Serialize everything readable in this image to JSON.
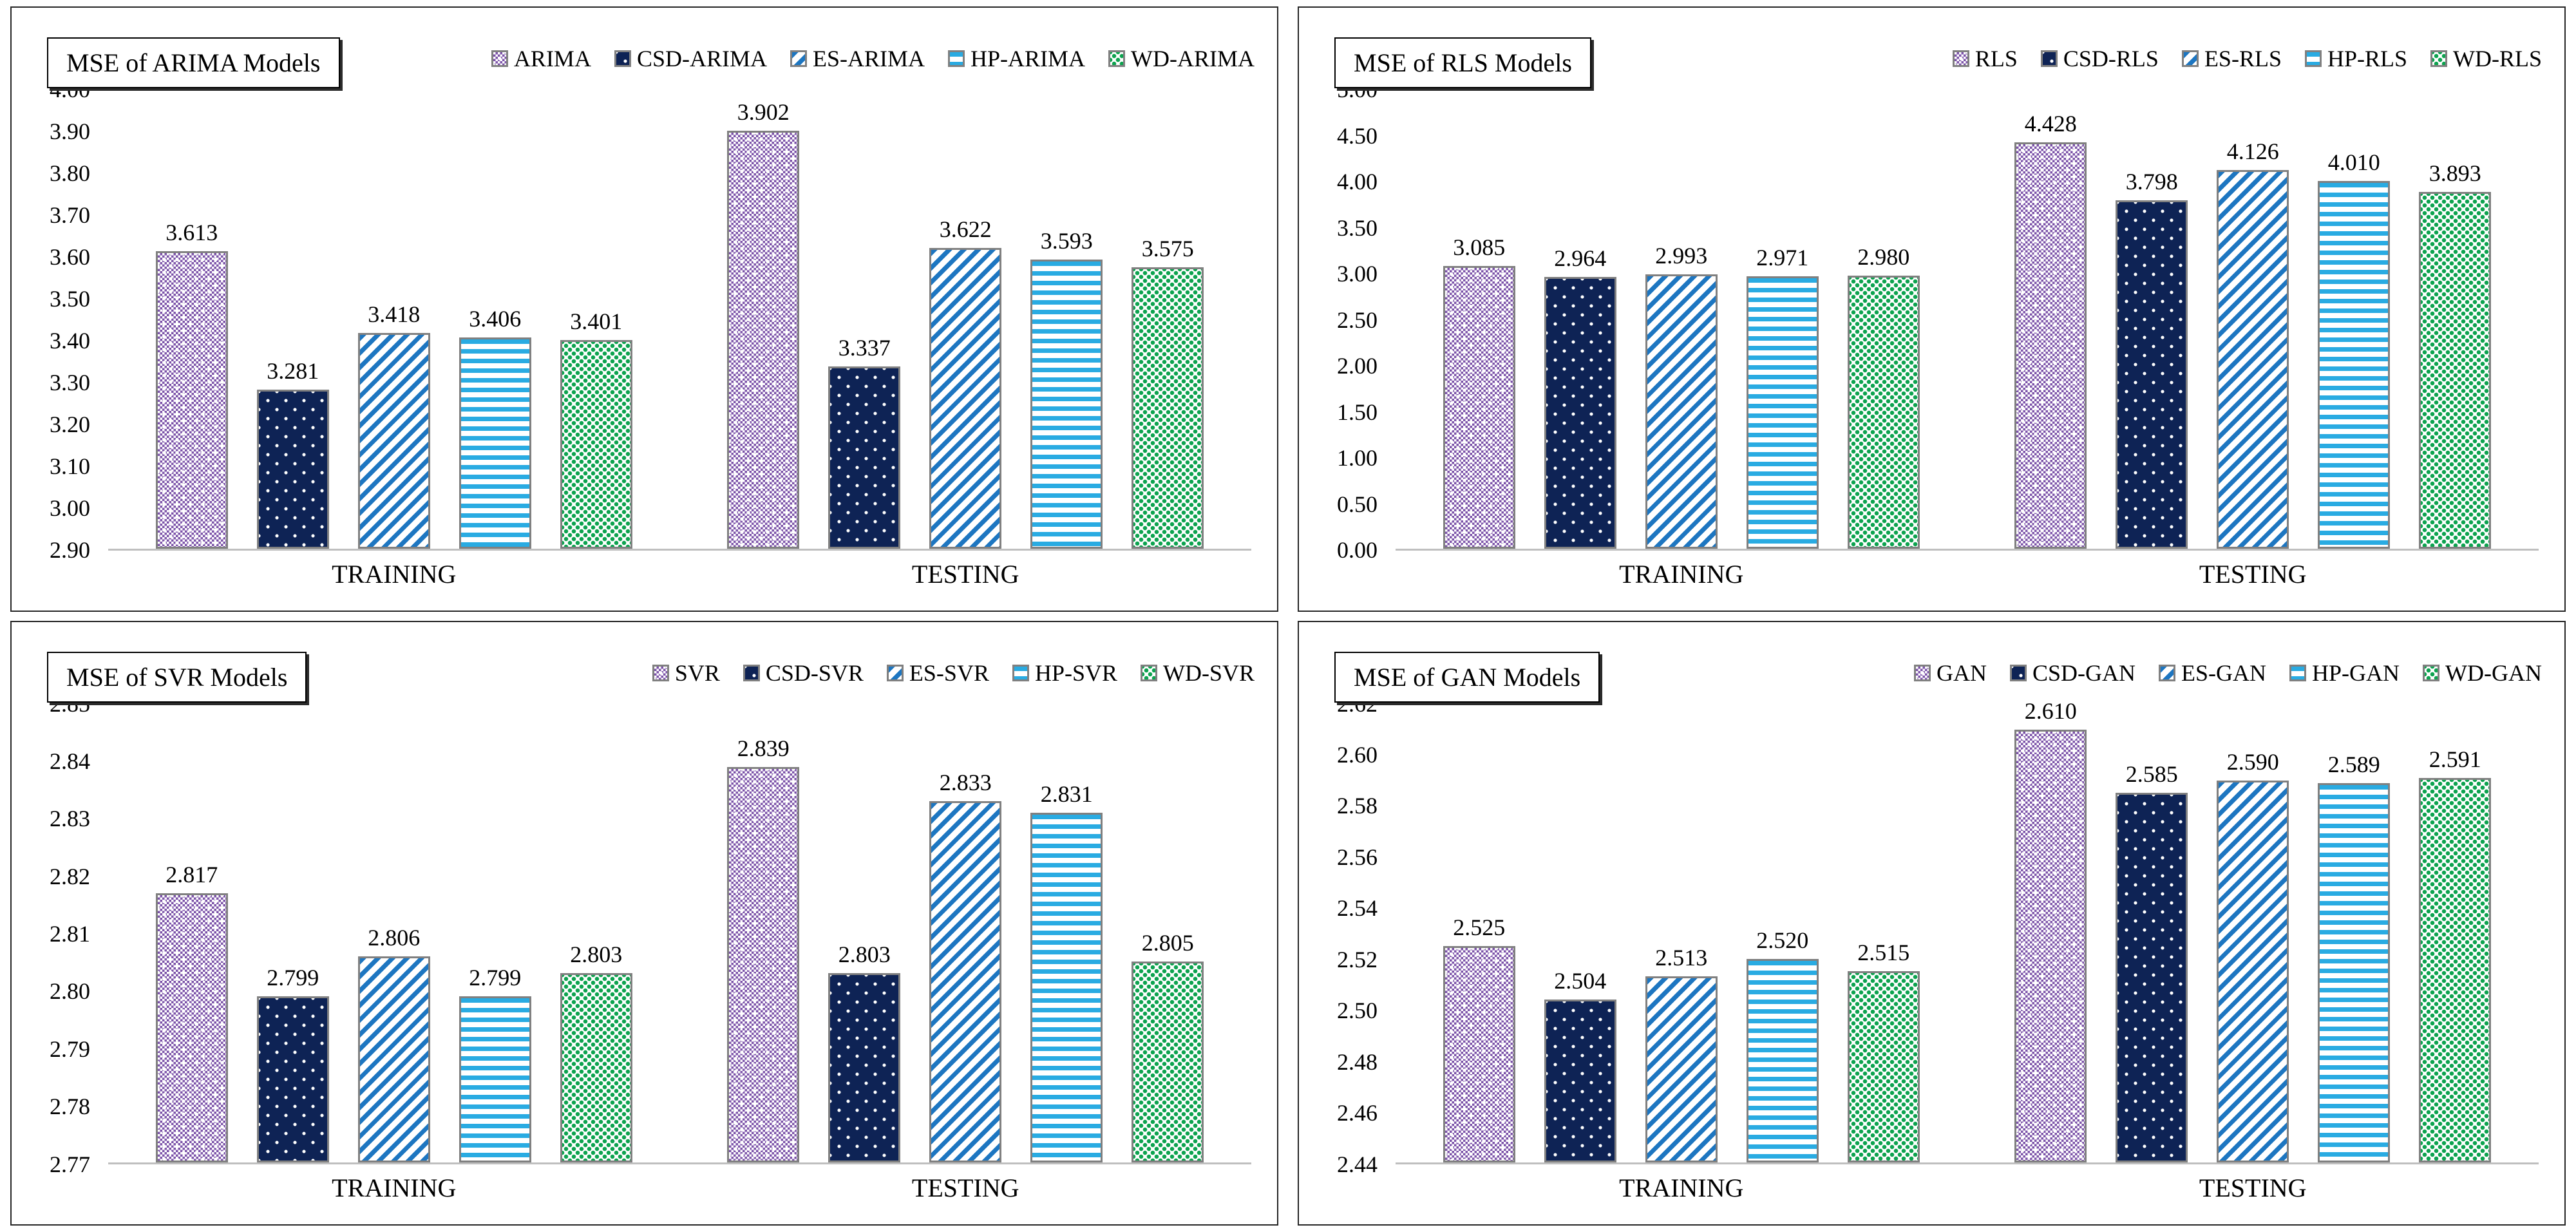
{
  "figure": {
    "background": "#FFFFFF",
    "panel_border_color": "#262626"
  },
  "styles": {
    "bar_outline": "#808080",
    "axis_line": "#BFBFBF",
    "text_color": "#000000",
    "patterns": [
      {
        "name": "purple-checker-dots",
        "color": "#7B52A8"
      },
      {
        "name": "navy-white-dots",
        "color": "#0E2355"
      },
      {
        "name": "blue-diagonal-stripes",
        "color": "#1D76C1"
      },
      {
        "name": "cyan-horizontal-stripes",
        "color": "#29ABE2"
      },
      {
        "name": "green-speckle",
        "color": "#0DA34F"
      }
    ]
  },
  "chart_data": [
    {
      "type": "bar",
      "title": "MSE of ARIMA Models",
      "categories": [
        "TRAINING",
        "TESTING"
      ],
      "series": [
        {
          "name": "ARIMA",
          "values": [
            3.613,
            3.902
          ]
        },
        {
          "name": "CSD-ARIMA",
          "values": [
            3.281,
            3.337
          ]
        },
        {
          "name": "ES-ARIMA",
          "values": [
            3.418,
            3.622
          ]
        },
        {
          "name": "HP-ARIMA",
          "values": [
            3.406,
            3.593
          ]
        },
        {
          "name": "WD-ARIMA",
          "values": [
            3.401,
            3.575
          ]
        }
      ],
      "ylim": [
        2.9,
        4.0
      ],
      "ytick_step": 0.1,
      "tick_decimals": 2,
      "value_decimals": 3,
      "grid": false,
      "legend_position": "top-right"
    },
    {
      "type": "bar",
      "title": "MSE of RLS Models",
      "categories": [
        "TRAINING",
        "TESTING"
      ],
      "series": [
        {
          "name": "RLS",
          "values": [
            3.085,
            4.428
          ]
        },
        {
          "name": "CSD-RLS",
          "values": [
            2.964,
            3.798
          ]
        },
        {
          "name": "ES-RLS",
          "values": [
            2.993,
            4.126
          ]
        },
        {
          "name": "HP-RLS",
          "values": [
            2.971,
            4.01
          ]
        },
        {
          "name": "WD-RLS",
          "values": [
            2.98,
            3.893
          ]
        }
      ],
      "ylim": [
        0.0,
        5.0
      ],
      "ytick_step": 0.5,
      "tick_decimals": 2,
      "value_decimals": 3,
      "grid": false,
      "legend_position": "top-right"
    },
    {
      "type": "bar",
      "title": "MSE of SVR Models",
      "categories": [
        "TRAINING",
        "TESTING"
      ],
      "series": [
        {
          "name": "SVR",
          "values": [
            2.817,
            2.839
          ]
        },
        {
          "name": "CSD-SVR",
          "values": [
            2.799,
            2.803
          ]
        },
        {
          "name": "ES-SVR",
          "values": [
            2.806,
            2.833
          ]
        },
        {
          "name": "HP-SVR",
          "values": [
            2.799,
            2.831
          ]
        },
        {
          "name": "WD-SVR",
          "values": [
            2.803,
            2.805
          ]
        }
      ],
      "ylim": [
        2.77,
        2.85
      ],
      "ytick_step": 0.01,
      "tick_decimals": 2,
      "value_decimals": 3,
      "grid": false,
      "legend_position": "top-right"
    },
    {
      "type": "bar",
      "title": "MSE of GAN Models",
      "categories": [
        "TRAINING",
        "TESTING"
      ],
      "series": [
        {
          "name": "GAN",
          "values": [
            2.525,
            2.61
          ]
        },
        {
          "name": "CSD-GAN",
          "values": [
            2.504,
            2.585
          ]
        },
        {
          "name": "ES-GAN",
          "values": [
            2.513,
            2.59
          ]
        },
        {
          "name": "HP-GAN",
          "values": [
            2.52,
            2.589
          ]
        },
        {
          "name": "WD-GAN",
          "values": [
            2.515,
            2.591
          ]
        }
      ],
      "ylim": [
        2.44,
        2.62
      ],
      "ytick_step": 0.02,
      "tick_decimals": 2,
      "value_decimals": 3,
      "grid": false,
      "legend_position": "top-right"
    }
  ]
}
